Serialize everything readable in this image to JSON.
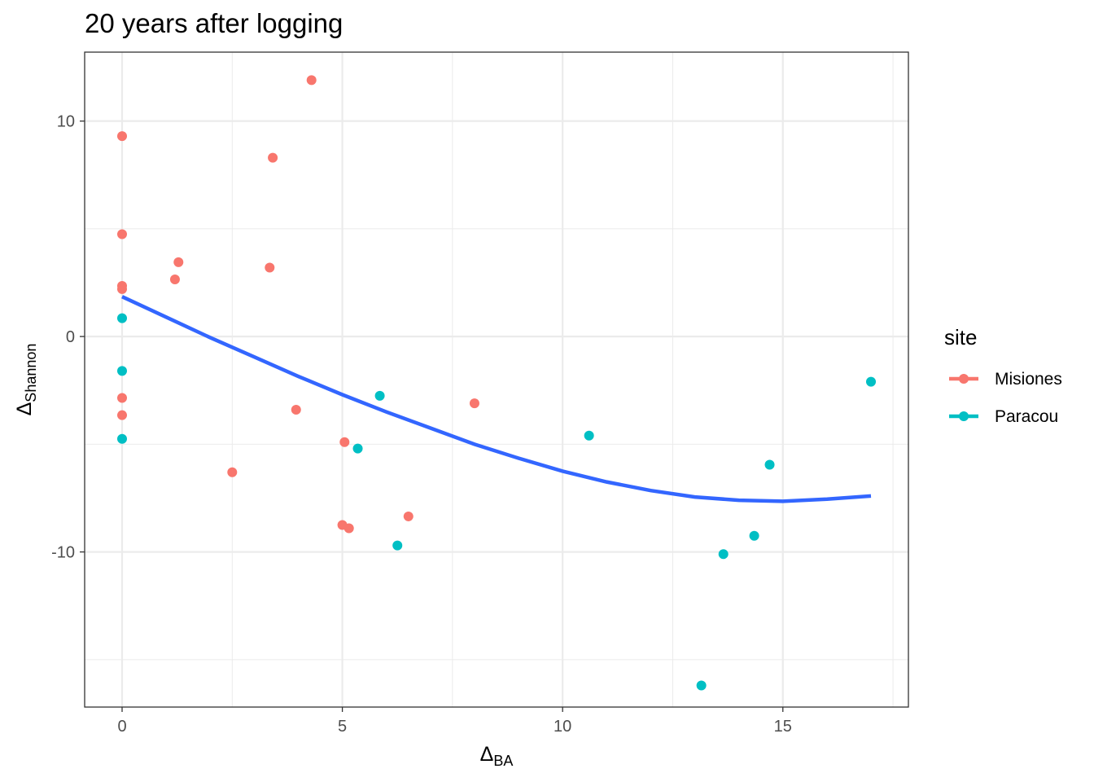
{
  "chart_data": {
    "type": "scatter",
    "title": "20 years after logging",
    "xlabel": {
      "symbol": "Δ",
      "sub": "BA"
    },
    "ylabel": {
      "symbol": "Δ",
      "sub": "Shannon"
    },
    "xlim": [
      -0.85,
      17.85
    ],
    "ylim": [
      -17.2,
      13.2
    ],
    "x_major_ticks": [
      0,
      5,
      10,
      15
    ],
    "x_minor_ticks": [
      2.5,
      7.5,
      12.5,
      17.5
    ],
    "y_major_ticks": [
      -10,
      0,
      10
    ],
    "y_minor_ticks": [
      -15,
      -5,
      5
    ],
    "grid": true,
    "legend": {
      "title": "site",
      "placement": "right"
    },
    "series": [
      {
        "name": "Misiones",
        "color": "#F8766D",
        "points": [
          {
            "x": 0,
            "y": 9.3
          },
          {
            "x": 0,
            "y": 4.75
          },
          {
            "x": 0,
            "y": 2.35
          },
          {
            "x": 0,
            "y": 2.2
          },
          {
            "x": 0,
            "y": -2.85
          },
          {
            "x": 0,
            "y": -3.65
          },
          {
            "x": 1.2,
            "y": 2.65
          },
          {
            "x": 1.28,
            "y": 3.45
          },
          {
            "x": 2.5,
            "y": -6.3
          },
          {
            "x": 3.35,
            "y": 3.2
          },
          {
            "x": 3.42,
            "y": 8.3
          },
          {
            "x": 3.95,
            "y": -3.4
          },
          {
            "x": 4.3,
            "y": 11.9
          },
          {
            "x": 5.0,
            "y": -8.75
          },
          {
            "x": 5.05,
            "y": -4.9
          },
          {
            "x": 5.15,
            "y": -8.9
          },
          {
            "x": 6.5,
            "y": -8.35
          },
          {
            "x": 8.0,
            "y": -3.1
          }
        ]
      },
      {
        "name": "Paracou",
        "color": "#00BFC4",
        "points": [
          {
            "x": 0,
            "y": 0.85
          },
          {
            "x": 0,
            "y": -1.6
          },
          {
            "x": 0,
            "y": -4.75
          },
          {
            "x": 5.35,
            "y": -5.2
          },
          {
            "x": 5.85,
            "y": -2.75
          },
          {
            "x": 6.25,
            "y": -9.7
          },
          {
            "x": 10.6,
            "y": -4.6
          },
          {
            "x": 13.15,
            "y": -16.2
          },
          {
            "x": 13.65,
            "y": -10.1
          },
          {
            "x": 14.35,
            "y": -9.25
          },
          {
            "x": 14.7,
            "y": -5.95
          },
          {
            "x": 17.0,
            "y": -2.1
          }
        ]
      }
    ],
    "fit_line": {
      "color": "#3366FF",
      "points": [
        {
          "x": 0,
          "y": 1.85
        },
        {
          "x": 1,
          "y": 0.9
        },
        {
          "x": 2,
          "y": -0.05
        },
        {
          "x": 3,
          "y": -0.95
        },
        {
          "x": 4,
          "y": -1.85
        },
        {
          "x": 5,
          "y": -2.7
        },
        {
          "x": 6,
          "y": -3.5
        },
        {
          "x": 7,
          "y": -4.25
        },
        {
          "x": 8,
          "y": -5.0
        },
        {
          "x": 9,
          "y": -5.65
        },
        {
          "x": 10,
          "y": -6.25
        },
        {
          "x": 11,
          "y": -6.75
        },
        {
          "x": 12,
          "y": -7.15
        },
        {
          "x": 13,
          "y": -7.45
        },
        {
          "x": 14,
          "y": -7.6
        },
        {
          "x": 15,
          "y": -7.65
        },
        {
          "x": 16,
          "y": -7.55
        },
        {
          "x": 17,
          "y": -7.4
        }
      ]
    }
  }
}
